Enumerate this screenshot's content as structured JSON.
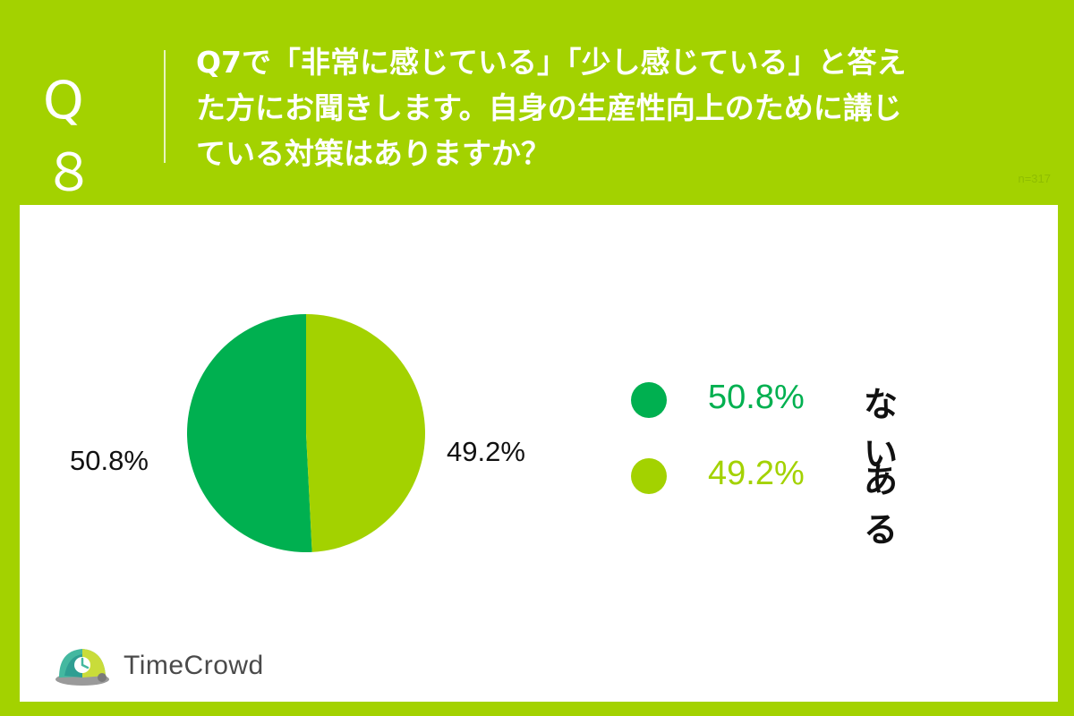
{
  "header": {
    "question_number": "Q８",
    "question_lines": [
      "Q7で「非常に感じている」「少し感じている」と答え",
      "た方にお聞きします。自身の生産性向上のために講じ",
      "ている対策はありますか？"
    ],
    "sample_size": "n=317"
  },
  "chart_data": {
    "type": "pie",
    "categories": [
      "ない",
      "ある"
    ],
    "values": [
      50.8,
      49.2
    ],
    "value_labels": [
      "50.8%",
      "49.2%"
    ],
    "colors": [
      "#00b050",
      "#a3d200"
    ],
    "legend_position": "right"
  },
  "legend": {
    "items": [
      {
        "pct": "50.8%",
        "name": "ない",
        "color": "#00b050"
      },
      {
        "pct": "49.2%",
        "name": "ある",
        "color": "#a3d200"
      }
    ]
  },
  "logo": {
    "text": "TimeCrowd",
    "icon": "timecrowd-logo-icon"
  },
  "colors": {
    "background": "#a3d200",
    "card": "#ffffff",
    "primary": "#00b050",
    "secondary": "#a3d200"
  }
}
